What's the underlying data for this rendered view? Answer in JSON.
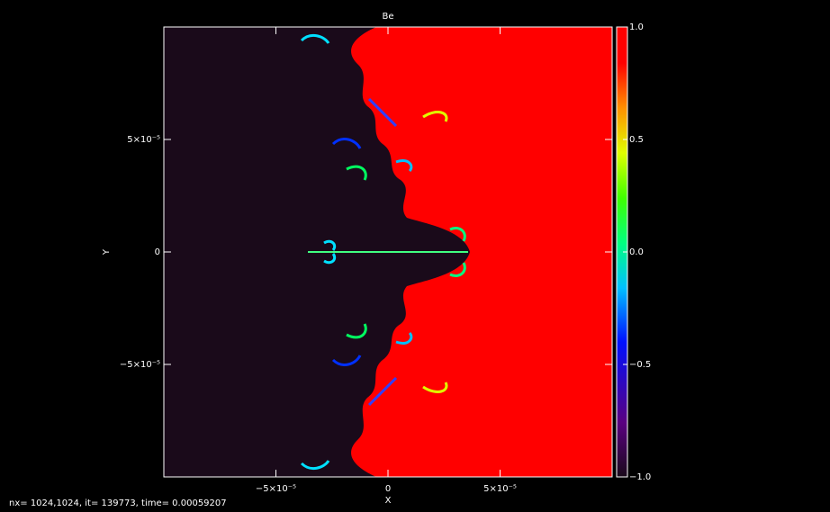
{
  "chart_data": {
    "type": "image",
    "title": "Be",
    "xlabel": "X",
    "ylabel": "Y",
    "footer": "nx=  1024,1024, it=  139773, time=  0.00059207",
    "xlim": [
      -0.0001,
      0.0001
    ],
    "ylim": [
      -0.0001,
      0.0001
    ],
    "xticks": [
      {
        "value": -5e-05,
        "label": "−5×10⁻⁵"
      },
      0,
      {
        "value": 5e-05,
        "label": "5×10⁻⁵"
      }
    ],
    "yticks": [
      {
        "value": -5e-05,
        "label": "−5×10⁻⁵"
      },
      0,
      {
        "value": 5e-05,
        "label": "5×10⁻⁵"
      }
    ],
    "clim": [
      -1,
      1
    ],
    "cticks": [
      {
        "value": -1,
        "label": "−1.0"
      },
      {
        "value": -0.5,
        "label": "−0.5"
      },
      {
        "value": 0,
        "label": "0.0"
      },
      {
        "value": 0.5,
        "label": "0.5"
      },
      {
        "value": 1,
        "label": "1.0"
      }
    ]
  }
}
